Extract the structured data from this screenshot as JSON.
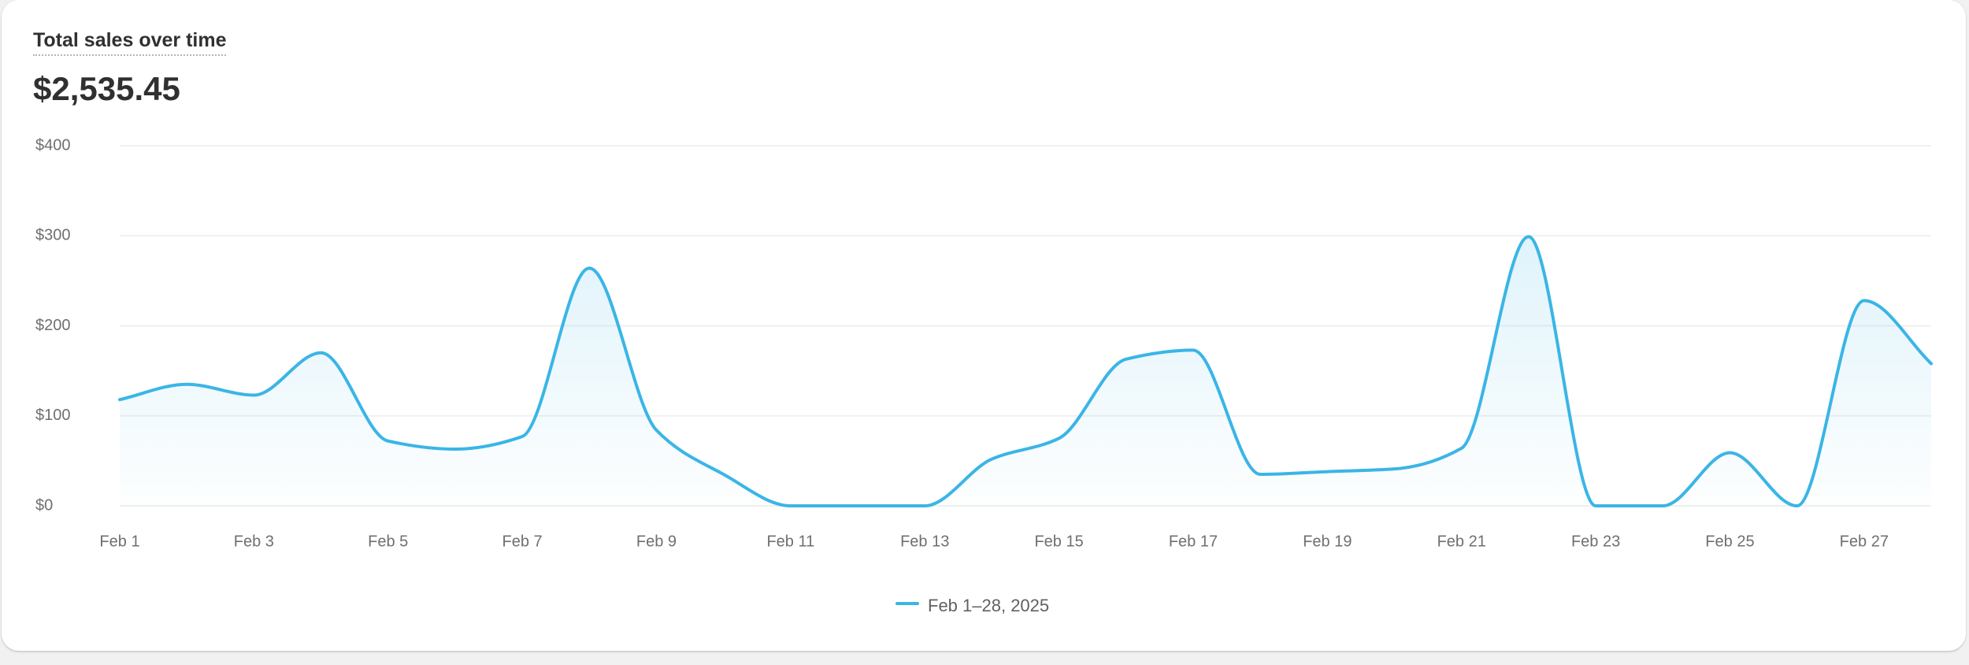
{
  "card": {
    "title": "Total sales over time",
    "total": "$2,535.45"
  },
  "colors": {
    "line": "#3ab5e6",
    "grid": "#f0f0f0",
    "tick": "#6f6f6f"
  },
  "chart_data": {
    "type": "area",
    "title": "Total sales over time",
    "xlabel": "",
    "ylabel": "",
    "ylim": [
      0,
      400
    ],
    "grid": true,
    "legend_position": "bottom-center",
    "y_ticks": [
      "$0",
      "$100",
      "$200",
      "$300",
      "$400"
    ],
    "y_tick_values": [
      0,
      100,
      200,
      300,
      400
    ],
    "x_ticks": [
      "Feb 1",
      "Feb 3",
      "Feb 5",
      "Feb 7",
      "Feb 9",
      "Feb 11",
      "Feb 13",
      "Feb 15",
      "Feb 17",
      "Feb 19",
      "Feb 21",
      "Feb 23",
      "Feb 25",
      "Feb 27"
    ],
    "x": [
      "Feb 1",
      "Feb 2",
      "Feb 3",
      "Feb 4",
      "Feb 5",
      "Feb 6",
      "Feb 7",
      "Feb 8",
      "Feb 9",
      "Feb 10",
      "Feb 11",
      "Feb 12",
      "Feb 13",
      "Feb 14",
      "Feb 15",
      "Feb 16",
      "Feb 17",
      "Feb 18",
      "Feb 19",
      "Feb 20",
      "Feb 21",
      "Feb 22",
      "Feb 23",
      "Feb 24",
      "Feb 25",
      "Feb 26",
      "Feb 27",
      "Feb 28"
    ],
    "series": [
      {
        "name": "Feb 1–28, 2025",
        "values": [
          118,
          135,
          123,
          170,
          72,
          63,
          77,
          264,
          84,
          35,
          0,
          0,
          0,
          52,
          75,
          163,
          173,
          35,
          38,
          41,
          64,
          299,
          0,
          0,
          59,
          0,
          228,
          158
        ]
      }
    ]
  }
}
